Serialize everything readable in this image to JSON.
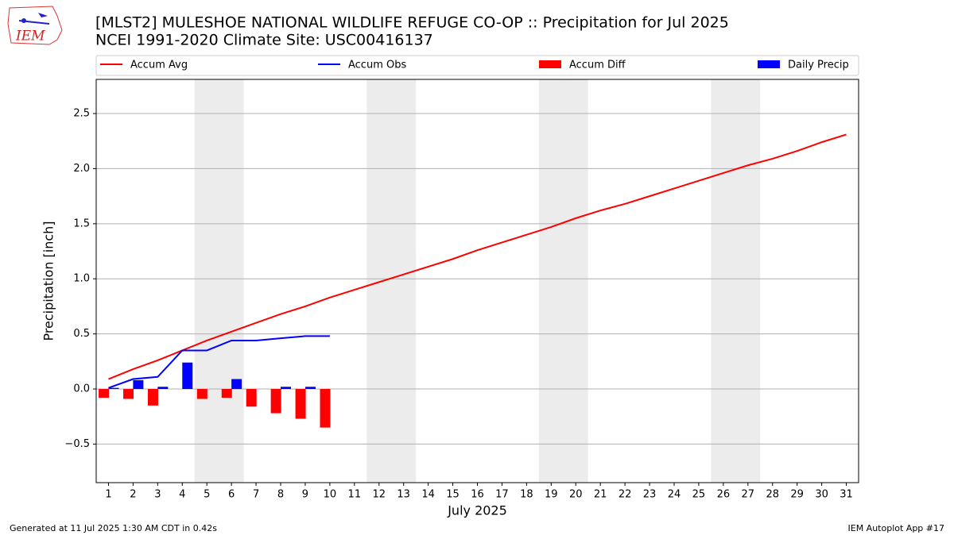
{
  "chart_data": {
    "type": "combo",
    "title": "[MLST2] MULESHOE NATIONAL WILDLIFE REFUGE CO-OP :: Precipitation for Jul 2025",
    "subtitle": "NCEI 1991-2020 Climate Site: USC00416137",
    "x_label": "July 2025",
    "y_label": "Precipitation [inch]",
    "x": [
      1,
      2,
      3,
      4,
      5,
      6,
      7,
      8,
      9,
      10,
      11,
      12,
      13,
      14,
      15,
      16,
      17,
      18,
      19,
      20,
      21,
      22,
      23,
      24,
      25,
      26,
      27,
      28,
      29,
      30,
      31
    ],
    "xlim": [
      0.5,
      31.5
    ],
    "xticks": [
      1,
      2,
      3,
      4,
      5,
      6,
      7,
      8,
      9,
      10,
      11,
      12,
      13,
      14,
      15,
      16,
      17,
      18,
      19,
      20,
      21,
      22,
      23,
      24,
      25,
      26,
      27,
      28,
      29,
      30,
      31
    ],
    "ylim": [
      -0.85,
      2.81
    ],
    "yticks": [
      {
        "value": -0.5,
        "label": "−0.5"
      },
      {
        "value": 0,
        "label": "0.0"
      },
      0.5,
      {
        "value": 1,
        "label": "1.0"
      },
      1.5,
      {
        "value": 2,
        "label": "2.0"
      },
      2.5
    ],
    "grid": true,
    "shaded_spans": [
      [
        4.5,
        6.5
      ],
      [
        11.5,
        13.5
      ],
      [
        18.5,
        20.5
      ],
      [
        25.5,
        27.5
      ]
    ],
    "series": [
      {
        "name": "Accum Avg",
        "type": "line",
        "color": "#ff0000",
        "values": [
          0.09,
          0.18,
          0.26,
          0.35,
          0.44,
          0.52,
          0.6,
          0.68,
          0.75,
          0.83,
          0.9,
          0.97,
          1.04,
          1.11,
          1.18,
          1.26,
          1.33,
          1.4,
          1.47,
          1.55,
          1.62,
          1.68,
          1.75,
          1.82,
          1.89,
          1.96,
          2.03,
          2.09,
          2.16,
          2.24,
          2.31
        ]
      },
      {
        "name": "Accum Obs",
        "type": "line",
        "color": "#0000ff",
        "values": [
          0.01,
          0.09,
          0.11,
          0.35,
          0.35,
          0.44,
          0.44,
          0.46,
          0.48,
          0.48,
          null,
          null,
          null,
          null,
          null,
          null,
          null,
          null,
          null,
          null,
          null,
          null,
          null,
          null,
          null,
          null,
          null,
          null,
          null,
          null,
          null
        ]
      },
      {
        "name": "Accum Diff",
        "type": "bar",
        "color": "#ff0000",
        "values": [
          -0.08,
          -0.09,
          -0.15,
          0.0,
          -0.09,
          -0.08,
          -0.16,
          -0.22,
          -0.27,
          -0.35,
          null,
          null,
          null,
          null,
          null,
          null,
          null,
          null,
          null,
          null,
          null,
          null,
          null,
          null,
          null,
          null,
          null,
          null,
          null,
          null,
          null
        ]
      },
      {
        "name": "Daily Precip",
        "type": "bar",
        "color": "#0000ff",
        "values": [
          0.01,
          0.08,
          0.02,
          0.24,
          0.0,
          0.09,
          0.0,
          0.02,
          0.02,
          0.0,
          null,
          null,
          null,
          null,
          null,
          null,
          null,
          null,
          null,
          null,
          null,
          null,
          null,
          null,
          null,
          null,
          null,
          null,
          null,
          null,
          null
        ]
      }
    ]
  },
  "logo_text": "IEM",
  "footer_left": "Generated at 11 Jul 2025 1:30 AM CDT in 0.42s",
  "footer_right": "IEM Autoplot App #17"
}
